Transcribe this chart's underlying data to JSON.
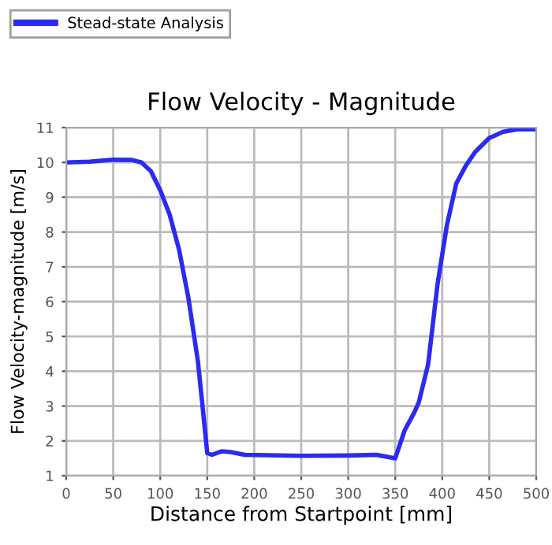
{
  "chart_data": {
    "type": "line",
    "title": "Flow Velocity - Magnitude",
    "xlabel": "Distance from Startpoint [mm]",
    "ylabel": "Flow Velocity-magnitude [m/s]",
    "series": [
      {
        "name": "Stead-state Analysis",
        "color": "#2b2bf0",
        "x": [
          0,
          25,
          50,
          70,
          80,
          90,
          100,
          110,
          120,
          130,
          140,
          145,
          150,
          155,
          165,
          175,
          190,
          250,
          300,
          330,
          340,
          350,
          360,
          370,
          375,
          385,
          395,
          405,
          415,
          425,
          435,
          450,
          465,
          480,
          500
        ],
        "values": [
          10.0,
          10.02,
          10.08,
          10.07,
          10.0,
          9.75,
          9.2,
          8.5,
          7.5,
          6.1,
          4.3,
          3.0,
          1.65,
          1.6,
          1.7,
          1.68,
          1.6,
          1.57,
          1.58,
          1.6,
          1.55,
          1.5,
          2.3,
          2.8,
          3.1,
          4.2,
          6.5,
          8.2,
          9.4,
          9.9,
          10.3,
          10.7,
          10.88,
          10.95,
          10.95
        ]
      }
    ],
    "xlim": [
      0,
      500
    ],
    "xticks": [
      0,
      50,
      100,
      150,
      200,
      250,
      300,
      350,
      400,
      450,
      500
    ],
    "ylim": [
      1,
      11
    ],
    "yticks": [
      1,
      2,
      3,
      4,
      5,
      6,
      7,
      8,
      9,
      10,
      11
    ],
    "grid": true,
    "legend": "top left",
    "line_style": "solid",
    "marker": "none"
  }
}
